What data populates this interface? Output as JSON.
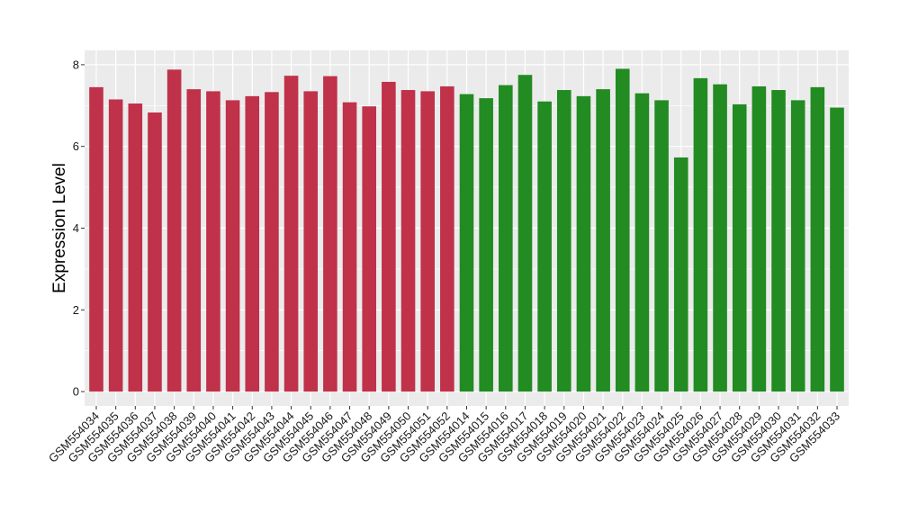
{
  "chart_data": {
    "type": "bar",
    "title": "",
    "xlabel": "",
    "ylabel": "Expression Level",
    "ylim": [
      -0.35,
      8.35
    ],
    "yticks": [
      0,
      2,
      4,
      6,
      8
    ],
    "grid": true,
    "legend": "none",
    "colors": {
      "red": "#c0314a",
      "green": "#228b22",
      "panel": "#ebebeb",
      "grid": "#ffffff"
    },
    "categories": [
      "GSM554034",
      "GSM554035",
      "GSM554036",
      "GSM554037",
      "GSM554038",
      "GSM554039",
      "GSM554040",
      "GSM554041",
      "GSM554042",
      "GSM554043",
      "GSM554044",
      "GSM554045",
      "GSM554046",
      "GSM554047",
      "GSM554048",
      "GSM554049",
      "GSM554050",
      "GSM554051",
      "GSM554052",
      "GSM554014",
      "GSM554015",
      "GSM554016",
      "GSM554017",
      "GSM554018",
      "GSM554019",
      "GSM554020",
      "GSM554021",
      "GSM554022",
      "GSM554023",
      "GSM554024",
      "GSM554025",
      "GSM554026",
      "GSM554027",
      "GSM554028",
      "GSM554029",
      "GSM554030",
      "GSM554031",
      "GSM554032",
      "GSM554033"
    ],
    "values": [
      7.45,
      7.15,
      7.05,
      6.83,
      7.88,
      7.4,
      7.35,
      7.13,
      7.23,
      7.33,
      7.73,
      7.35,
      7.72,
      7.08,
      6.98,
      7.58,
      7.38,
      7.35,
      7.47,
      7.28,
      7.18,
      7.5,
      7.75,
      7.1,
      7.38,
      7.23,
      7.4,
      7.9,
      7.3,
      7.13,
      5.73,
      7.67,
      7.52,
      7.03,
      7.47,
      7.38,
      7.13,
      7.45,
      6.95
    ],
    "groups": [
      "red",
      "red",
      "red",
      "red",
      "red",
      "red",
      "red",
      "red",
      "red",
      "red",
      "red",
      "red",
      "red",
      "red",
      "red",
      "red",
      "red",
      "red",
      "red",
      "green",
      "green",
      "green",
      "green",
      "green",
      "green",
      "green",
      "green",
      "green",
      "green",
      "green",
      "green",
      "green",
      "green",
      "green",
      "green",
      "green",
      "green",
      "green",
      "green"
    ]
  }
}
